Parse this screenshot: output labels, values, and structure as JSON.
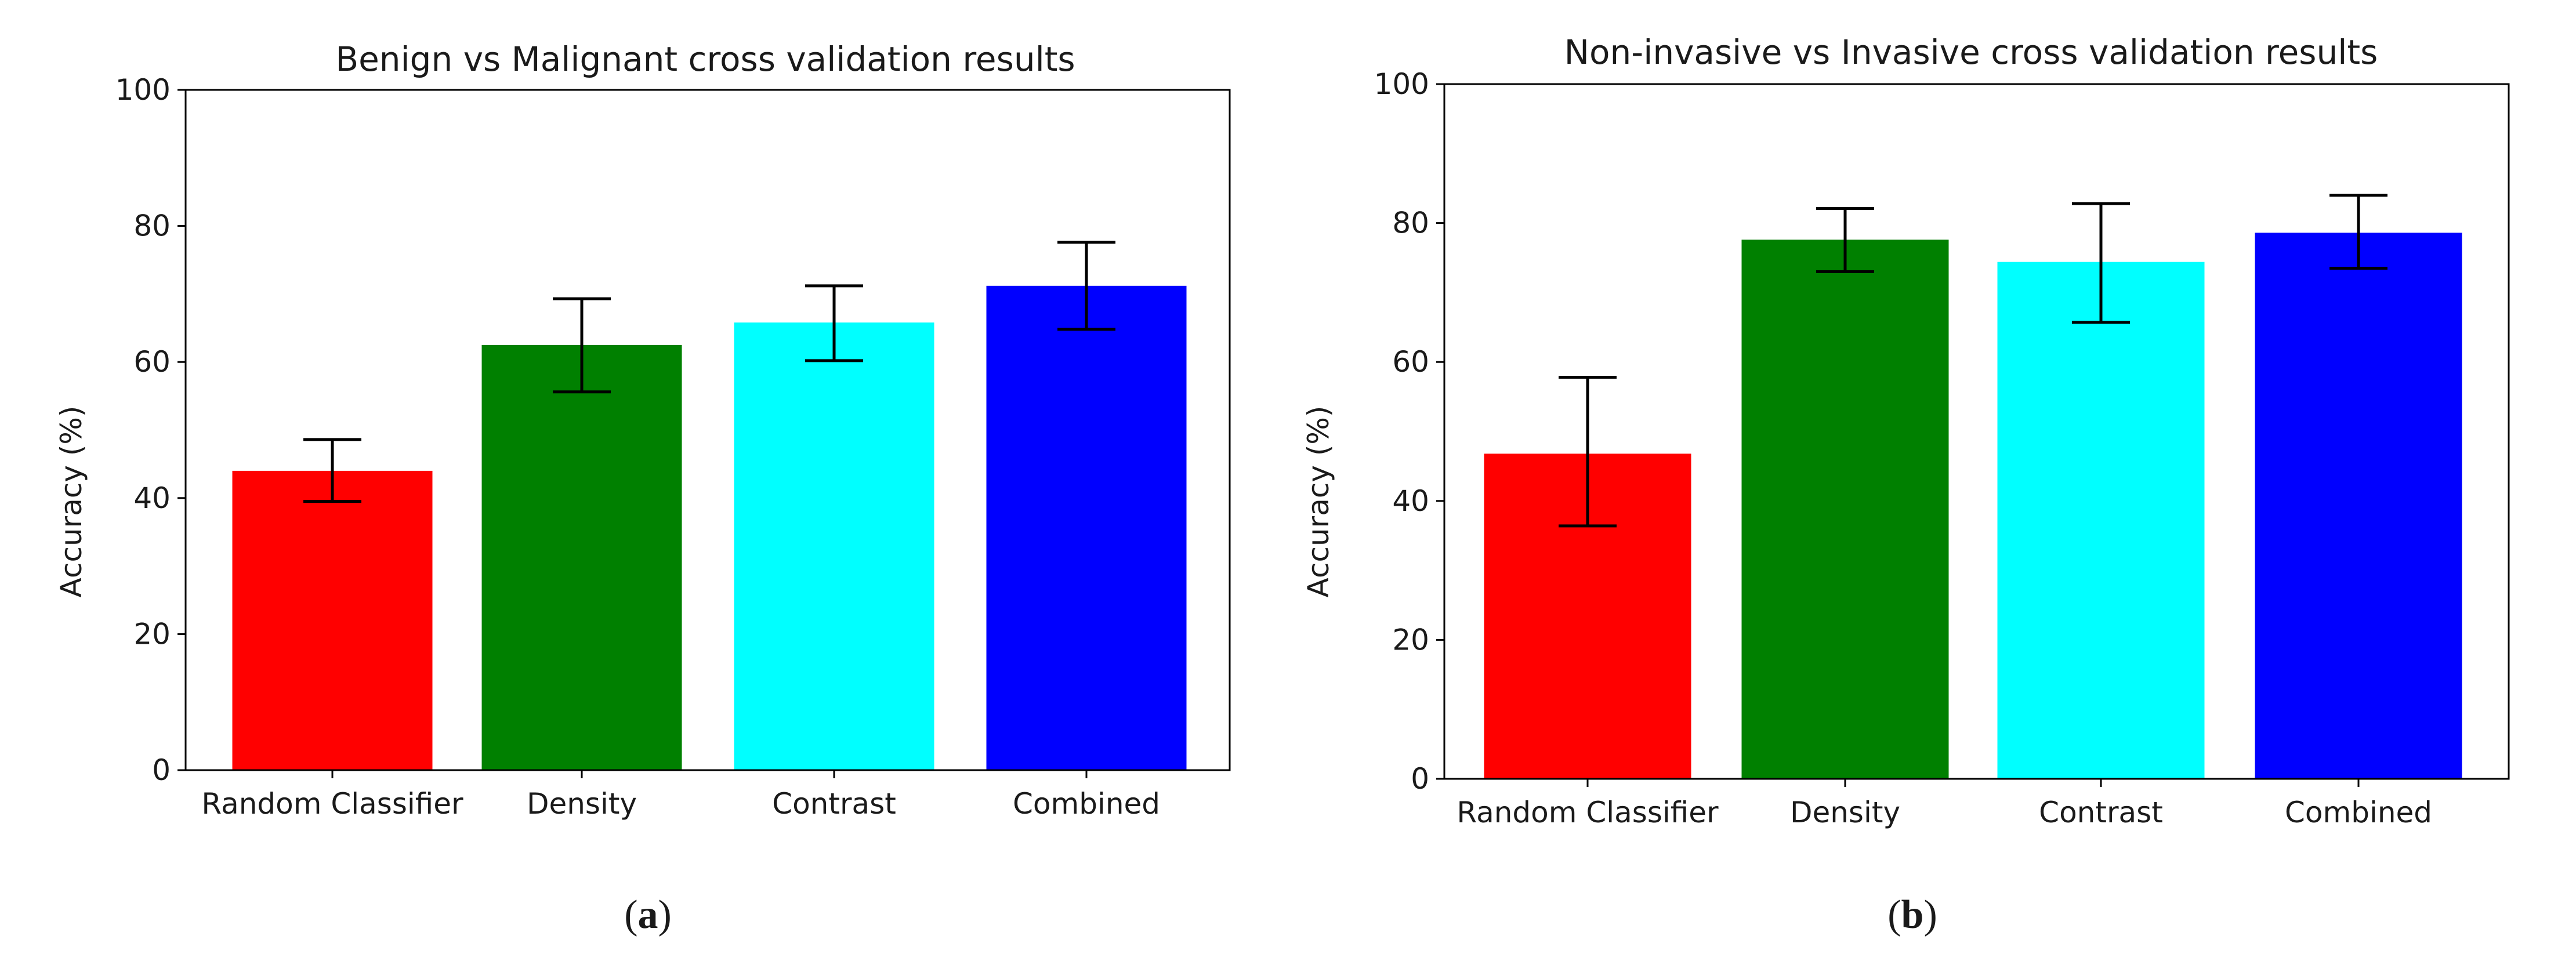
{
  "chart_data": [
    {
      "type": "bar",
      "title": "Benign vs Malignant cross validation results",
      "ylabel": "Accuracy (%)",
      "xlabel": "",
      "categories": [
        "Random Classifier",
        "Density",
        "Contrast",
        "Combined"
      ],
      "values": [
        44,
        62.5,
        65.8,
        71.2
      ],
      "error_low": [
        39.5,
        55.6,
        60.2,
        64.8
      ],
      "error_high": [
        48.6,
        69.3,
        71.2,
        77.6
      ],
      "colors": [
        "#ff0000",
        "#008000",
        "#00ffff",
        "#0000ff"
      ],
      "ylim": [
        0,
        100
      ],
      "yticks": [
        0,
        20,
        40,
        60,
        80,
        100
      ],
      "grid": false,
      "panel_label": "a"
    },
    {
      "type": "bar",
      "title": "Non-invasive vs Invasive cross validation results",
      "ylabel": "Accuracy (%)",
      "xlabel": "",
      "categories": [
        "Random Classifier",
        "Density",
        "Contrast",
        "Combined"
      ],
      "values": [
        46.8,
        77.6,
        74.4,
        78.6
      ],
      "error_low": [
        36.4,
        73,
        65.7,
        73.5
      ],
      "error_high": [
        57.8,
        82.1,
        82.8,
        84
      ],
      "colors": [
        "#ff0000",
        "#008000",
        "#00ffff",
        "#0000ff"
      ],
      "ylim": [
        0,
        100
      ],
      "yticks": [
        0,
        20,
        40,
        60,
        80,
        100
      ],
      "grid": false,
      "panel_label": "b"
    }
  ]
}
